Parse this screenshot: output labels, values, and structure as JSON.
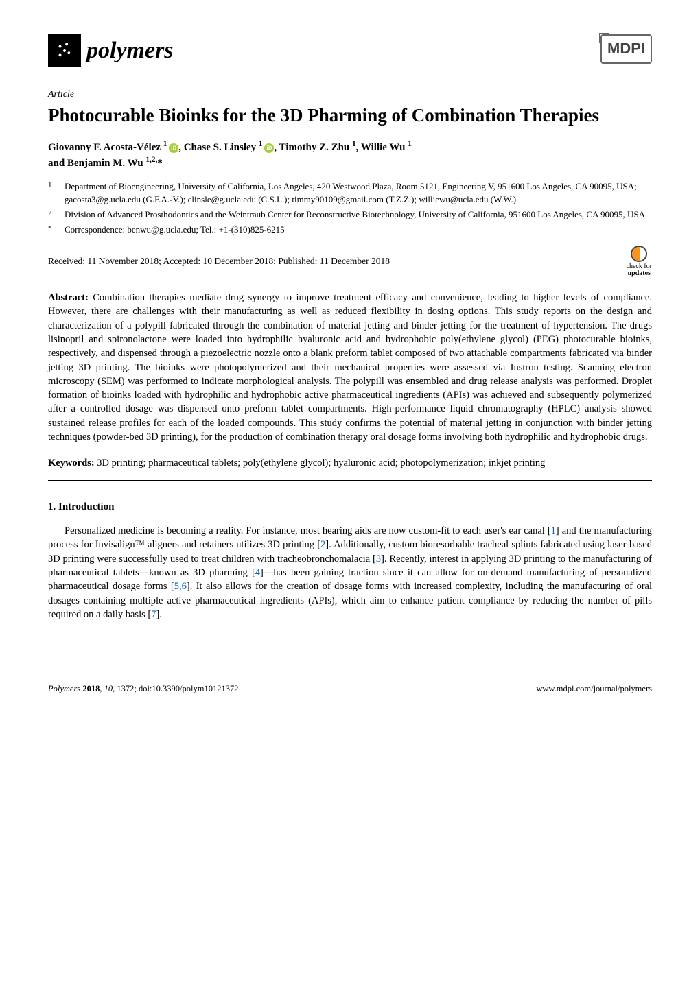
{
  "journal": {
    "name": "polymers",
    "publisher": "MDPI"
  },
  "article_type": "Article",
  "title": "Photocurable Bioinks for the 3D Pharming of Combination Therapies",
  "authors_line1": "Giovanny F. Acosta-Vélez ",
  "authors_sup1": "1 ",
  "authors_line2": ", Chase S. Linsley ",
  "authors_sup2": "1 ",
  "authors_line3": ", Timothy Z. Zhu ",
  "authors_sup3": "1",
  "authors_line4": ", Willie Wu ",
  "authors_sup4": "1",
  "authors_line5": "and Benjamin M. Wu ",
  "authors_sup5": "1,2,",
  "authors_star": "*",
  "affiliations": [
    {
      "num": "1",
      "text": "Department of Bioengineering, University of California, Los Angeles, 420 Westwood Plaza, Room 5121, Engineering V, 951600 Los Angeles, CA 90095, USA; gacosta3@g.ucla.edu (G.F.A.-V.); clinsle@g.ucla.edu (C.S.L.); timmy90109@gmail.com (T.Z.Z.); williewu@ucla.edu (W.W.)"
    },
    {
      "num": "2",
      "text": "Division of Advanced Prosthodontics and the Weintraub Center for Reconstructive Biotechnology, University of California, 951600 Los Angeles, CA 90095, USA"
    },
    {
      "num": "*",
      "text": "Correspondence: benwu@g.ucla.edu; Tel.: +1-(310)825-6215"
    }
  ],
  "dates": "Received: 11 November 2018; Accepted: 10 December 2018; Published: 11 December 2018",
  "check_updates_label1": "check for",
  "check_updates_label2": "updates",
  "abstract_label": "Abstract:",
  "abstract_text": " Combination therapies mediate drug synergy to improve treatment efficacy and convenience, leading to higher levels of compliance. However, there are challenges with their manufacturing as well as reduced flexibility in dosing options. This study reports on the design and characterization of a polypill fabricated through the combination of material jetting and binder jetting for the treatment of hypertension. The drugs lisinopril and spironolactone were loaded into hydrophilic hyaluronic acid and hydrophobic poly(ethylene glycol) (PEG) photocurable bioinks, respectively, and dispensed through a piezoelectric nozzle onto a blank preform tablet composed of two attachable compartments fabricated via binder jetting 3D printing. The bioinks were photopolymerized and their mechanical properties were assessed via Instron testing. Scanning electron microscopy (SEM) was performed to indicate morphological analysis. The polypill was ensembled and drug release analysis was performed. Droplet formation of bioinks loaded with hydrophilic and hydrophobic active pharmaceutical ingredients (APIs) was achieved and subsequently polymerized after a controlled dosage was dispensed onto preform tablet compartments. High-performance liquid chromatography (HPLC) analysis showed sustained release profiles for each of the loaded compounds. This study confirms the potential of material jetting in conjunction with binder jetting techniques (powder-bed 3D printing), for the production of combination therapy oral dosage forms involving both hydrophilic and hydrophobic drugs.",
  "keywords_label": "Keywords:",
  "keywords_text": " 3D printing; pharmaceutical tablets; poly(ethylene glycol); hyaluronic acid; photopolymerization; inkjet printing",
  "section1_heading": "1. Introduction",
  "intro_para": "Personalized medicine is becoming a reality. For instance, most hearing aids are now custom-fit to each user's ear canal [1] and the manufacturing process for Invisalign™ aligners and retainers utilizes 3D printing [2]. Additionally, custom bioresorbable tracheal splints fabricated using laser-based 3D printing were successfully used to treat children with tracheobronchomalacia [3]. Recently, interest in applying 3D printing to the manufacturing of pharmaceutical tablets—known as 3D pharming [4]—has been gaining traction since it can allow for on-demand manufacturing of personalized pharmaceutical dosage forms [5,6]. It also allows for the creation of dosage forms with increased complexity, including the manufacturing of oral dosages containing multiple active pharmaceutical ingredients (APIs), which aim to enhance patient compliance by reducing the number of pills required on a daily basis [7].",
  "refs": [
    "1",
    "2",
    "3",
    "4",
    "5",
    "6",
    "7"
  ],
  "footer": {
    "left_journal": "Polymers",
    "left_year": "2018",
    "left_vol": "10",
    "left_page": "1372",
    "left_doi": "doi:10.3390/polym10121372",
    "right": "www.mdpi.com/journal/polymers"
  }
}
